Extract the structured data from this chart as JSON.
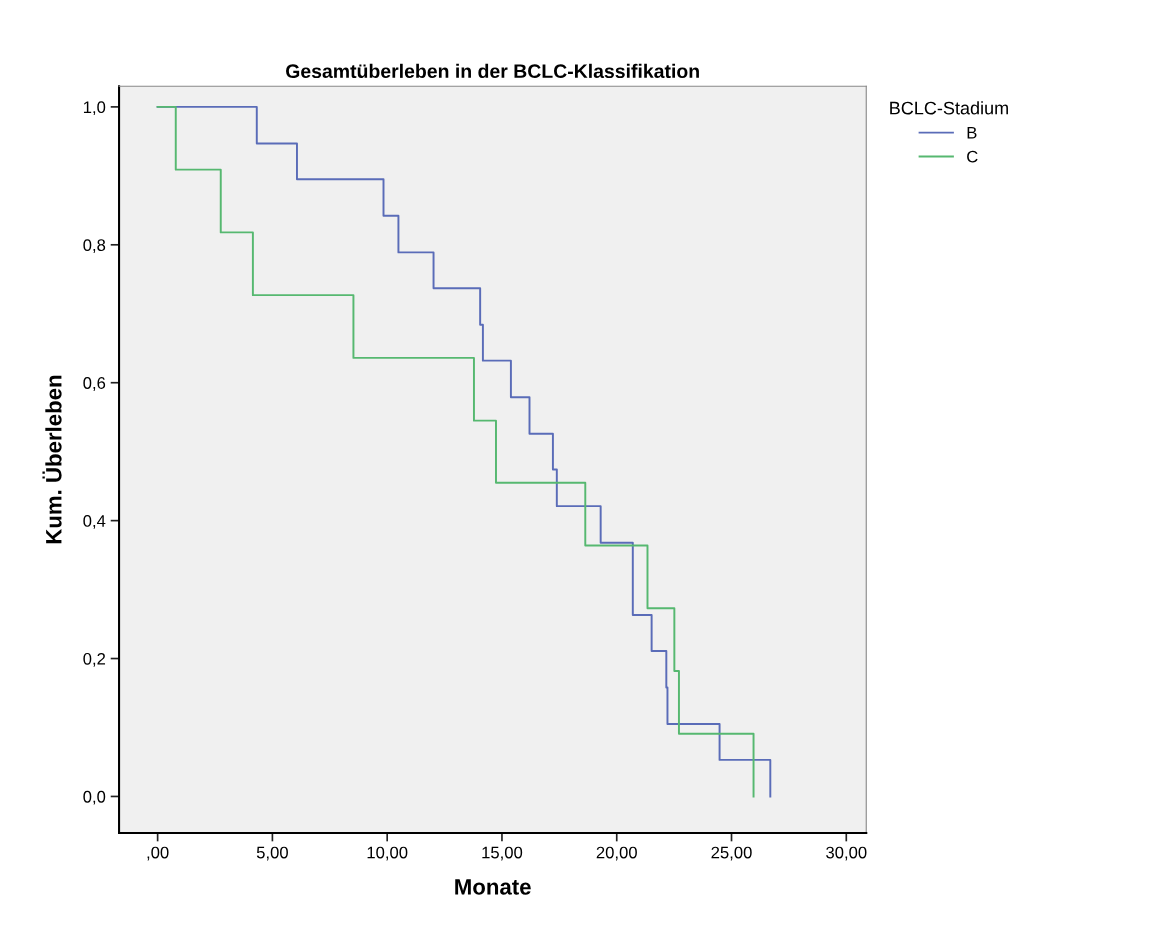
{
  "chart_data": {
    "type": "step",
    "title": "Gesamtüberleben in der BCLC-Klassifikation",
    "xlabel": "Monate",
    "ylabel": "Kum. Überleben",
    "legend_title": "BCLC-Stadium",
    "series": [
      {
        "name": "B",
        "color": "#5a6cb8",
        "x": [
          0,
          4.32,
          6.07,
          9.84,
          10.49,
          12.02,
          14.05,
          14.17,
          15.39,
          16.2,
          17.22,
          17.39,
          19.3,
          20.7,
          21.52,
          22.16,
          22.21,
          24.48,
          26.69
        ],
        "values": [
          1.0,
          0.947,
          0.895,
          0.842,
          0.789,
          0.737,
          0.684,
          0.632,
          0.579,
          0.526,
          0.474,
          0.421,
          0.368,
          0.263,
          0.211,
          0.158,
          0.105,
          0.053,
          0.0
        ]
      },
      {
        "name": "C",
        "color": "#56b870",
        "x": [
          0,
          0.79,
          2.75,
          4.15,
          8.53,
          13.78,
          14.74,
          18.63,
          21.34,
          22.51,
          22.71,
          25.96
        ],
        "values": [
          1.0,
          0.909,
          0.818,
          0.727,
          0.636,
          0.545,
          0.455,
          0.364,
          0.273,
          0.182,
          0.091,
          0.0
        ]
      }
    ],
    "xlim": [
      -1.68,
      30.87
    ],
    "ylim": [
      -0.053,
      1.03
    ],
    "xticks": [
      {
        "value": 0,
        "label": ",00"
      },
      {
        "value": 5,
        "label": "5,00"
      },
      {
        "value": 10,
        "label": "10,00"
      },
      {
        "value": 15,
        "label": "15,00"
      },
      {
        "value": 20,
        "label": "20,00"
      },
      {
        "value": 25,
        "label": "25,00"
      },
      {
        "value": 30,
        "label": "30,00"
      }
    ],
    "yticks": [
      {
        "value": 0,
        "label": "0,0"
      },
      {
        "value": 0.2,
        "label": "0,2"
      },
      {
        "value": 0.4,
        "label": "0,4"
      },
      {
        "value": 0.6,
        "label": "0,6"
      },
      {
        "value": 0.8,
        "label": "0,8"
      },
      {
        "value": 1.0,
        "label": "1,0"
      }
    ],
    "grid": false,
    "legend": "top right",
    "line_style": "solid",
    "marker": "none"
  }
}
